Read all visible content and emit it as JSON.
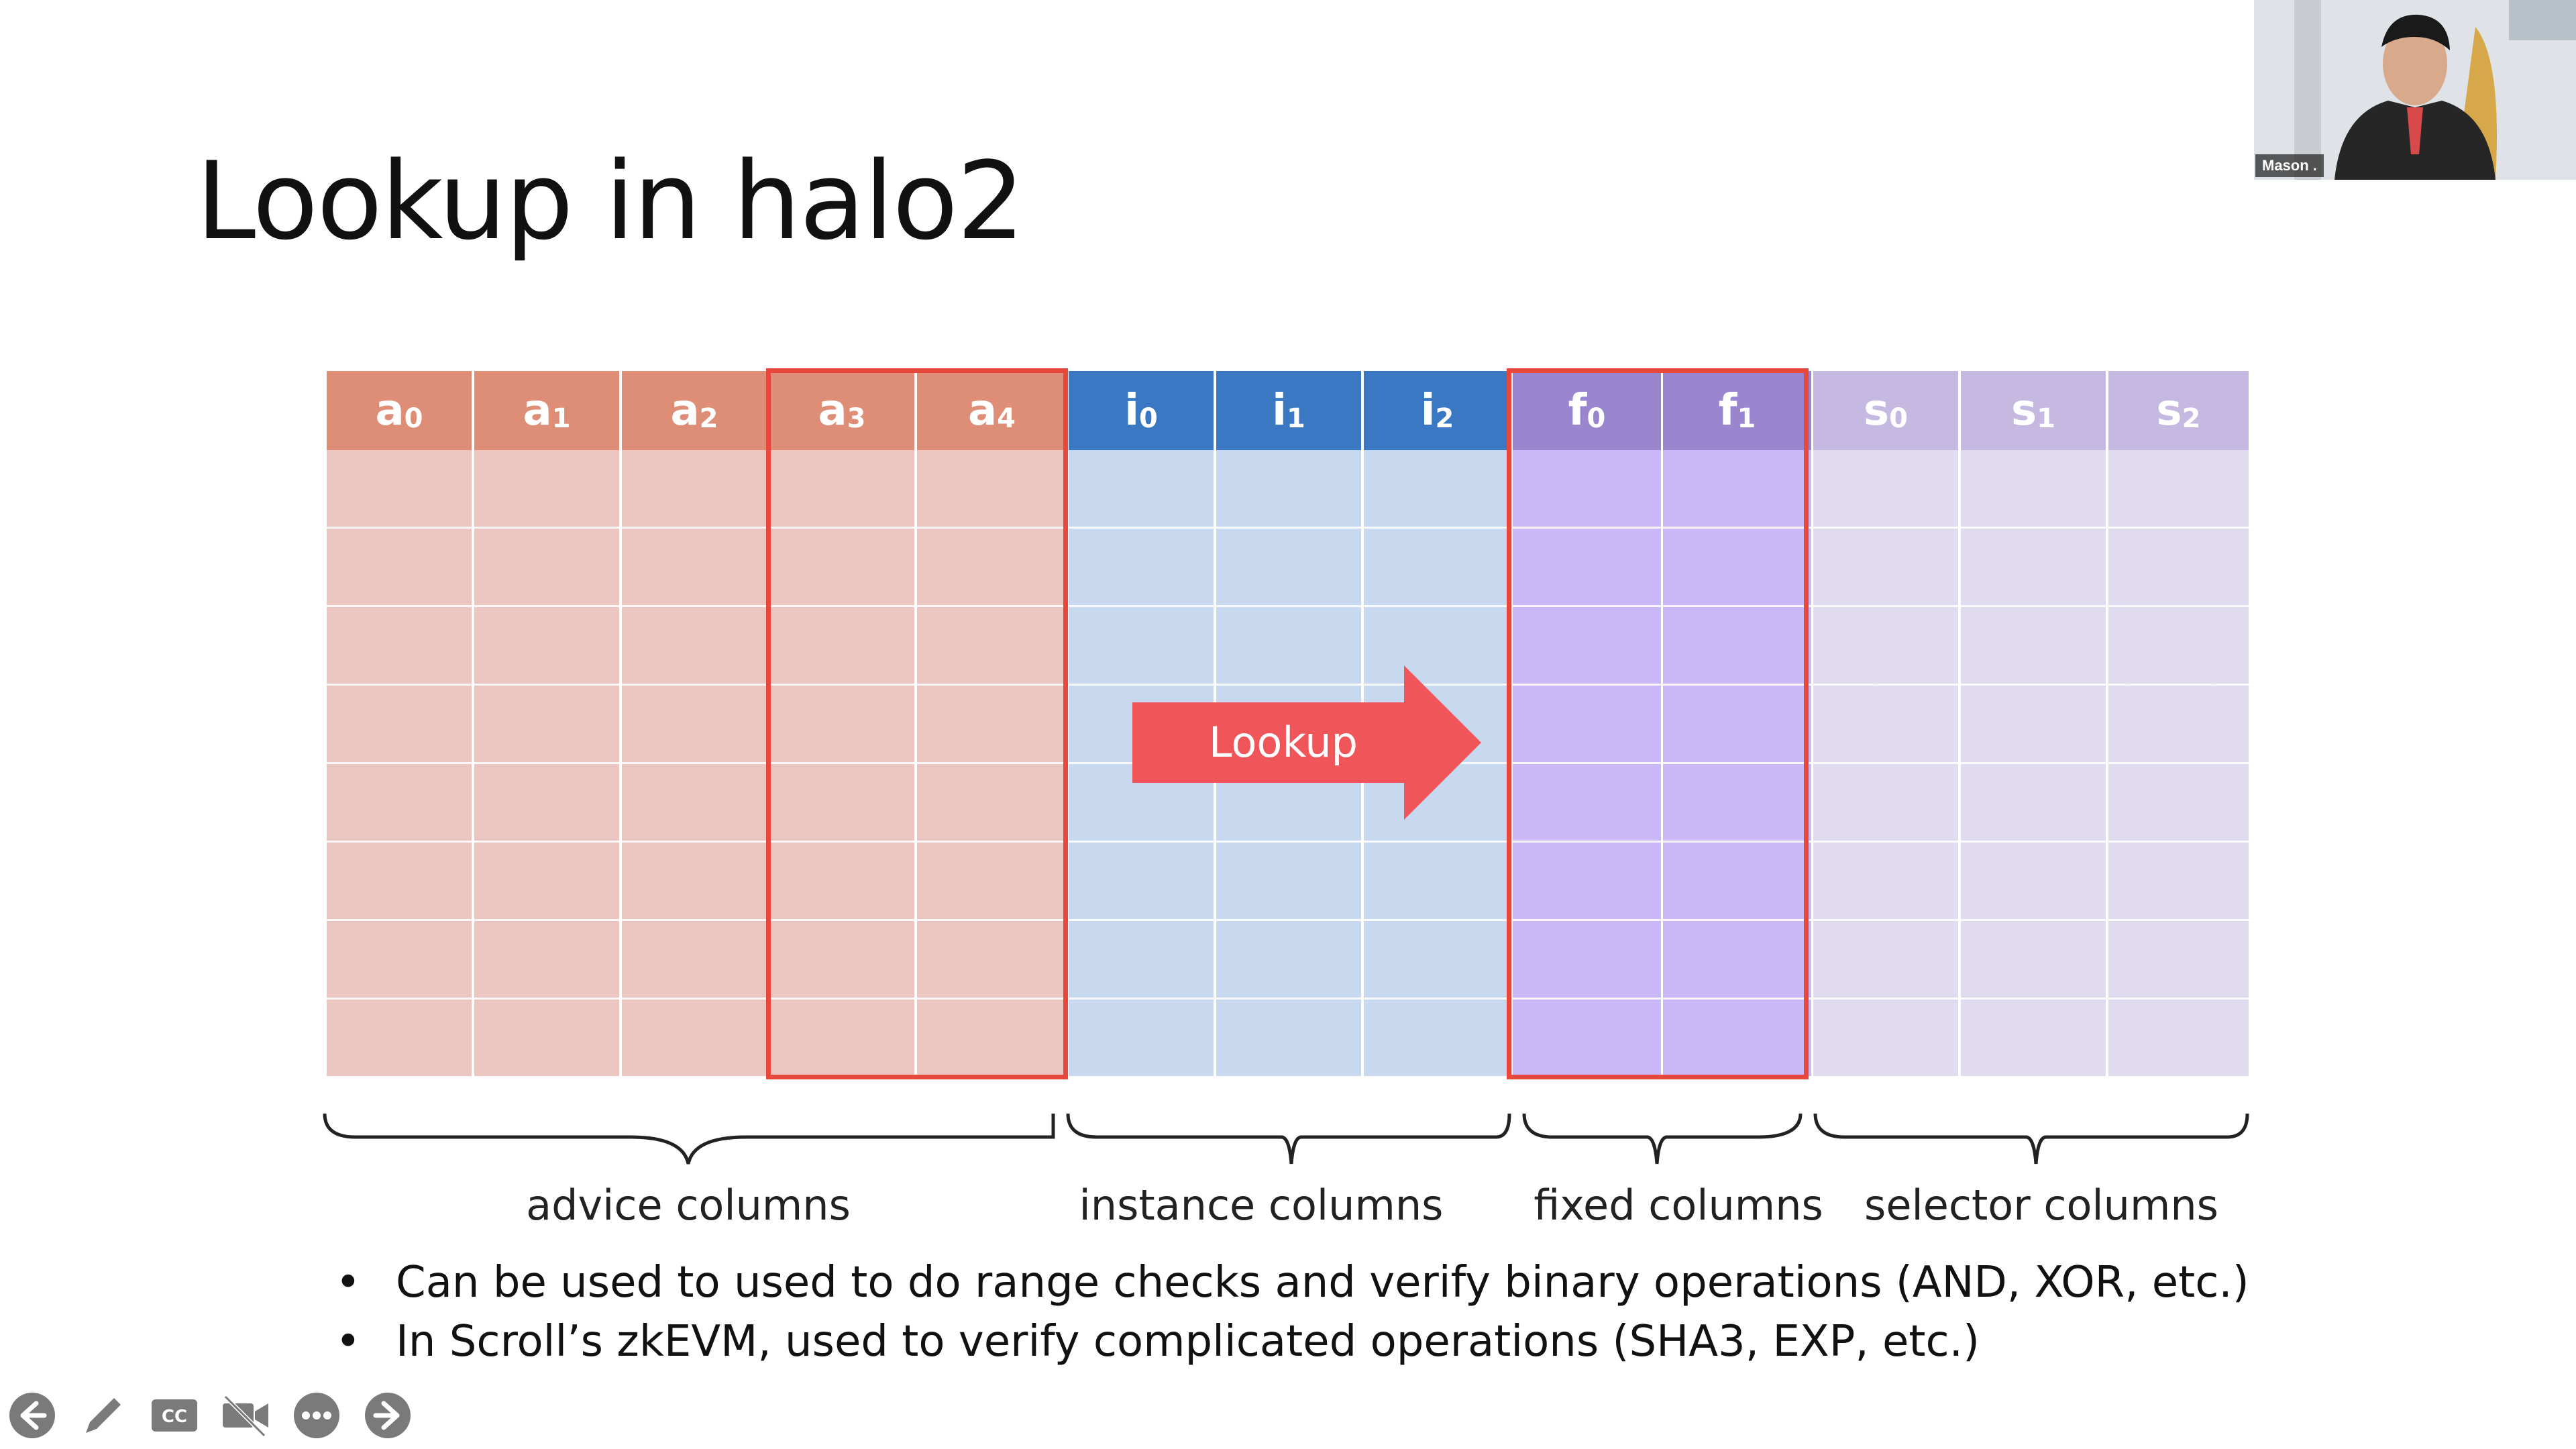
{
  "slide": {
    "title": "Lookup in halo2",
    "columns": [
      {
        "letter": "a",
        "sub": "0",
        "group": "advice"
      },
      {
        "letter": "a",
        "sub": "1",
        "group": "advice"
      },
      {
        "letter": "a",
        "sub": "2",
        "group": "advice"
      },
      {
        "letter": "a",
        "sub": "3",
        "group": "advice"
      },
      {
        "letter": "a",
        "sub": "4",
        "group": "advice"
      },
      {
        "letter": "i",
        "sub": "0",
        "group": "instance"
      },
      {
        "letter": "i",
        "sub": "1",
        "group": "instance"
      },
      {
        "letter": "i",
        "sub": "2",
        "group": "instance"
      },
      {
        "letter": "f",
        "sub": "0",
        "group": "fixed"
      },
      {
        "letter": "f",
        "sub": "1",
        "group": "fixed"
      },
      {
        "letter": "s",
        "sub": "0",
        "group": "selector"
      },
      {
        "letter": "s",
        "sub": "1",
        "group": "selector"
      },
      {
        "letter": "s",
        "sub": "2",
        "group": "selector"
      }
    ],
    "arrow_label": "Lookup",
    "groups": {
      "advice": "advice columns",
      "instance": "instance columns",
      "fixed": "fixed columns",
      "selector": "selector columns"
    },
    "bullets": [
      "Can be used to used to do range checks and verify binary operations (AND, XOR, etc.)",
      "In Scroll’s zkEVM, used to verify complicated operations (SHA3, EXP, etc.)"
    ],
    "colors": {
      "advice_header": "#de8e76",
      "instance_header": "#3b78c4",
      "fixed_header": "#9a86cf",
      "selector_header": "#c5b9e2",
      "highlight": "#e8483c",
      "arrow": "#f0555a"
    }
  },
  "webcam": {
    "participant_name": "Mason ."
  },
  "toolbar": {
    "icons": [
      "back-icon",
      "pen-icon",
      "captions-icon",
      "video-off-icon",
      "more-icon",
      "forward-icon"
    ]
  }
}
